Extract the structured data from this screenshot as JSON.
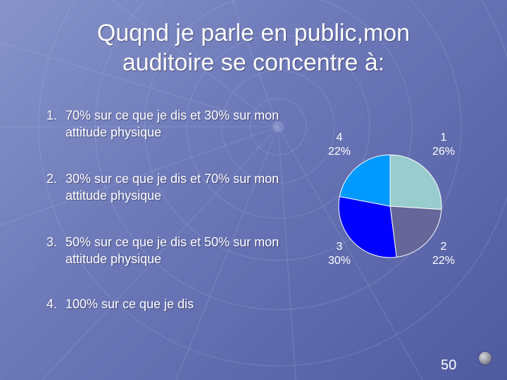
{
  "title_line1": "Quqnd je parle en public,mon",
  "title_line2": "auditoire se concentre à:",
  "options": [
    {
      "num": "1.",
      "text": "70% sur ce que je dis et 30% sur mon attitude physique"
    },
    {
      "num": "2.",
      "text": "30% sur ce que je dis et 70% sur mon attitude physique"
    },
    {
      "num": "3.",
      "text": "50% sur ce que je dis et 50% sur mon attitude physique"
    },
    {
      "num": "4.",
      "text": "100% sur ce que je dis"
    }
  ],
  "chart_data": {
    "type": "pie",
    "categories": [
      "1",
      "2",
      "3",
      "4"
    ],
    "values": [
      26,
      22,
      30,
      22
    ],
    "labels": [
      "26%",
      "22%",
      "30%",
      "22%"
    ],
    "colors": [
      "#99cccc",
      "#666699",
      "#0000ff",
      "#0099ff"
    ],
    "start_angle": "12 o'clock, clockwise"
  },
  "page_number": "50",
  "colors": {
    "background": "#6a76b6",
    "text": "#ffffff"
  }
}
